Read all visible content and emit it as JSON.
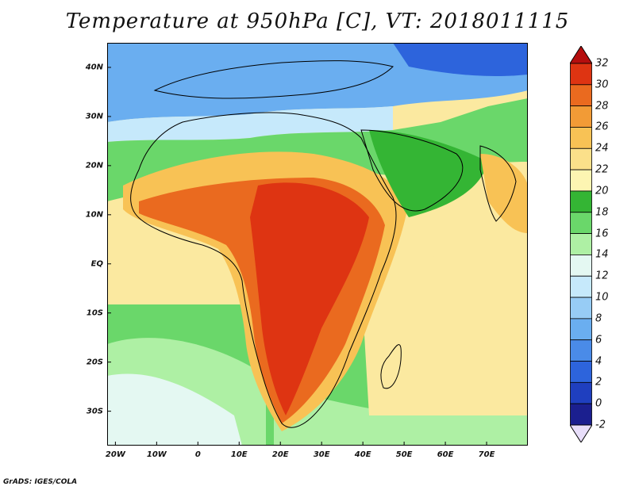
{
  "title": "Temperature at 950hPa [C], VT: 2018011115",
  "footer": "GrADS: IGES/COLA",
  "map": {
    "lon_range": [
      -22,
      80
    ],
    "lat_range": [
      -37,
      45
    ],
    "lat_labels": [
      {
        "value": 40,
        "text": "40N"
      },
      {
        "value": 30,
        "text": "30N"
      },
      {
        "value": 20,
        "text": "20N"
      },
      {
        "value": 10,
        "text": "10N"
      },
      {
        "value": 0,
        "text": "EQ"
      },
      {
        "value": -10,
        "text": "10S"
      },
      {
        "value": -20,
        "text": "20S"
      },
      {
        "value": -30,
        "text": "30S"
      }
    ],
    "lon_labels": [
      {
        "value": -20,
        "text": "20W"
      },
      {
        "value": -10,
        "text": "10W"
      },
      {
        "value": 0,
        "text": "0"
      },
      {
        "value": 10,
        "text": "10E"
      },
      {
        "value": 20,
        "text": "20E"
      },
      {
        "value": 30,
        "text": "30E"
      },
      {
        "value": 40,
        "text": "40E"
      },
      {
        "value": 50,
        "text": "50E"
      },
      {
        "value": 60,
        "text": "60E"
      },
      {
        "value": 70,
        "text": "70E"
      }
    ]
  },
  "colorbar": {
    "levels": [
      "-2",
      "0",
      "2",
      "4",
      "6",
      "8",
      "10",
      "12",
      "14",
      "16",
      "18",
      "20",
      "22",
      "24",
      "26",
      "28",
      "30",
      "32"
    ],
    "colors": [
      "#e8defa",
      "#1b1f8f",
      "#1f3fbf",
      "#2d64dc",
      "#4a8be8",
      "#6aaef0",
      "#97ccf5",
      "#c6e9fb",
      "#e4f8f2",
      "#aef0a4",
      "#6ad76a",
      "#34b534",
      "#fdf5b2",
      "#fbe08a",
      "#f8c255",
      "#f29b36",
      "#ea6a1f",
      "#de3412",
      "#b50e0e"
    ]
  }
}
